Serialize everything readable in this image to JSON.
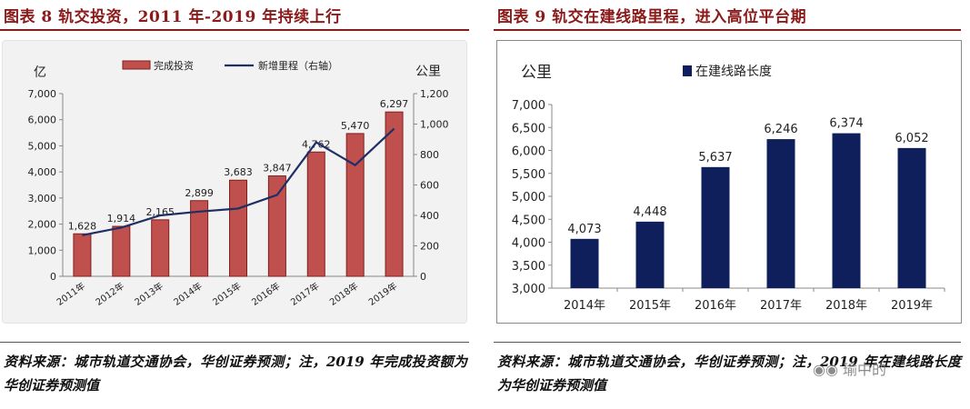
{
  "left": {
    "title": "图表 8   轨交投资，2011 年-2019 年持续上行",
    "source": "资料来源：城市轨道交通协会，华创证券预测；注，2019 年完成投资额为华创证券预测值",
    "colors": {
      "bar": "#c0504d",
      "bar_edge": "#7f1f1c",
      "line": "#1f2f66",
      "title": "#8b1a1a"
    }
  },
  "right": {
    "title": "图表 9   轨交在建线路里程，进入高位平台期",
    "source": "资料来源：城市轨道交通协会，华创证券预测；注，2019 年在建线路长度为华创证券预测值",
    "colors": {
      "bar": "#0f1f5c",
      "title": "#8b1a1a"
    }
  },
  "watermark": "瑜中的",
  "chart_data": [
    {
      "type": "bar",
      "categories": [
        "2011年",
        "2012年",
        "2013年",
        "2014年",
        "2015年",
        "2016年",
        "2017年",
        "2018年",
        "2019年"
      ],
      "series": [
        {
          "name": "完成投资",
          "type": "bar",
          "axis": "left",
          "values": [
            1628,
            1914,
            2165,
            2899,
            3683,
            3847,
            4762,
            5470,
            6297
          ],
          "labels": [
            "1,628",
            "1,914",
            "2,165",
            "2,899",
            "3,683",
            "3,847",
            "4,762",
            "5,470",
            "6,297"
          ]
        },
        {
          "name": "新增里程（右轴）",
          "type": "line",
          "axis": "right",
          "values": [
            270,
            320,
            400,
            425,
            445,
            535,
            880,
            730,
            970
          ]
        }
      ],
      "ylabel": "亿",
      "ylabel_right": "公里",
      "ylim": [
        0,
        7000
      ],
      "ylim_right": [
        0,
        1200
      ],
      "yticks": [
        "0",
        "1,000",
        "2,000",
        "3,000",
        "4,000",
        "5,000",
        "6,000",
        "7,000"
      ],
      "yticks_right": [
        "0",
        "200",
        "400",
        "600",
        "800",
        "1,000",
        "1,200"
      ],
      "legend": "top",
      "grid": false
    },
    {
      "type": "bar",
      "categories": [
        "2014年",
        "2015年",
        "2016年",
        "2017年",
        "2018年",
        "2019年"
      ],
      "series": [
        {
          "name": "在建线路长度",
          "values": [
            4073,
            4448,
            5637,
            6246,
            6374,
            6052
          ],
          "labels": [
            "4,073",
            "4,448",
            "5,637",
            "6,246",
            "6,374",
            "6,052"
          ]
        }
      ],
      "ylabel": "公里",
      "ylim": [
        3000,
        7000
      ],
      "yticks": [
        "3,000",
        "3,500",
        "4,000",
        "4,500",
        "5,000",
        "5,500",
        "6,000",
        "6,500",
        "7,000"
      ],
      "legend": "top",
      "grid": false
    }
  ]
}
